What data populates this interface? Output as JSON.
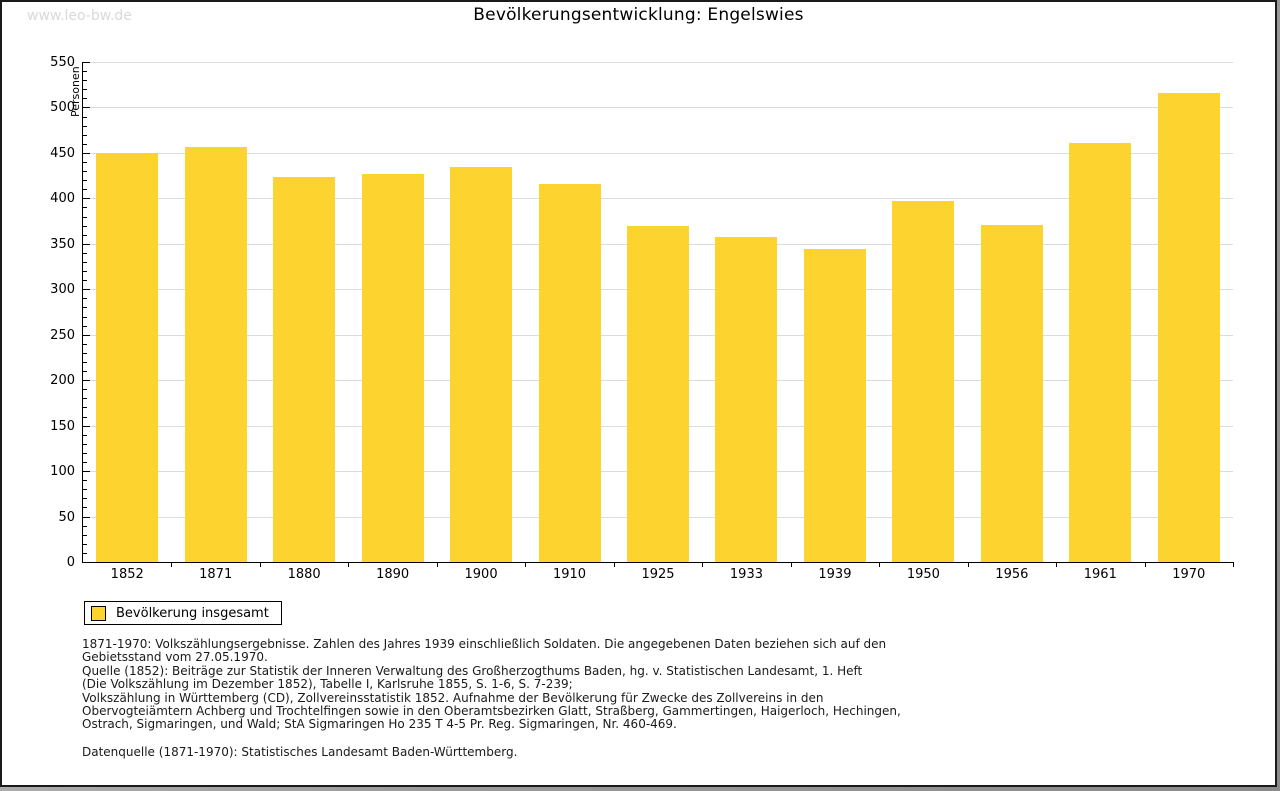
{
  "watermark": "www.leo-bw.de",
  "title": "Bevölkerungsentwicklung: Engelswies",
  "chart_data": {
    "type": "bar",
    "title": "Bevölkerungsentwicklung: Engelswies",
    "categories": [
      "1852",
      "1871",
      "1880",
      "1890",
      "1900",
      "1910",
      "1925",
      "1933",
      "1939",
      "1950",
      "1956",
      "1961",
      "1970"
    ],
    "values": [
      450,
      456,
      423,
      427,
      435,
      416,
      370,
      358,
      344,
      397,
      371,
      461,
      516
    ],
    "series_name": "Bevölkerung insgesamt",
    "xlabel": "",
    "ylabel": "Personen",
    "ylim": [
      0,
      550
    ],
    "ytick_step": 50,
    "minor_tick_step": 10,
    "grid": true,
    "legend_position": "bottom-left",
    "bar_color": "#FCD32F",
    "grid_color": "#DCDCDC",
    "axis_color": "#000000"
  },
  "legend": {
    "label": "Bevölkerung insgesamt"
  },
  "footer": {
    "notes": [
      "1871-1970: Volkszählungsergebnisse. Zahlen des Jahres 1939 einschließlich Soldaten. Die angegebenen Daten beziehen sich auf den",
      "Gebietsstand vom 27.05.1970.",
      "Quelle (1852): Beiträge zur Statistik der Inneren Verwaltung des Großherzogthums Baden, hg. v. Statistischen Landesamt, 1. Heft",
      "(Die Volkszählung im Dezember 1852), Tabelle I, Karlsruhe 1855, S. 1-6, S. 7-239;",
      "Volkszählung in Württemberg (CD), Zollvereinsstatistik 1852. Aufnahme der Bevölkerung für Zwecke des Zollvereins in den",
      "Obervogteiämtern Achberg und Trochtelfingen sowie in den Oberamtsbezirken Glatt, Straßberg, Gammertingen, Haigerloch, Hechingen,",
      "Ostrach, Sigmaringen, und Wald; StA Sigmaringen Ho 235 T 4-5 Pr. Reg. Sigmaringen, Nr. 460-469."
    ],
    "datasource": "Datenquelle (1871-1970): Statistisches Landesamt Baden-Württemberg."
  }
}
